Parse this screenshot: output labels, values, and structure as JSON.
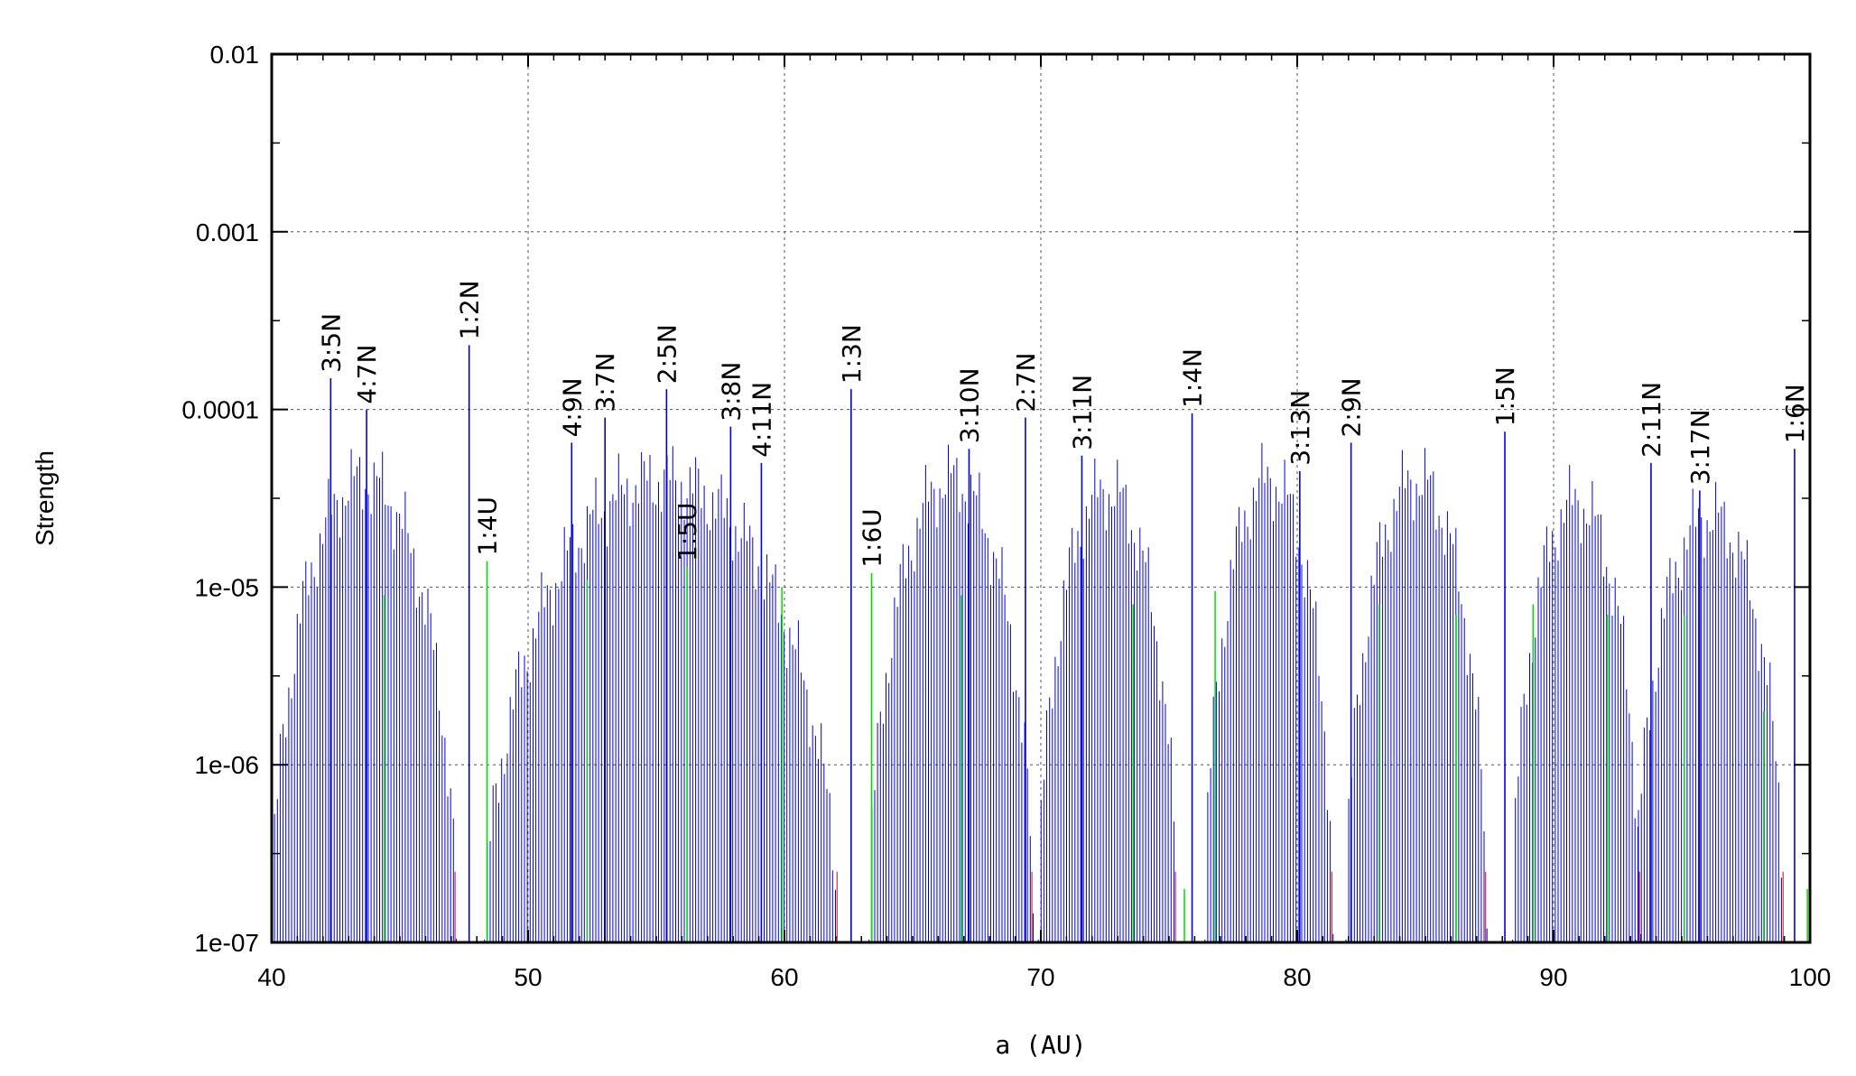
{
  "chart_data": {
    "type": "bar",
    "title": "",
    "xlabel": "a (AU)",
    "ylabel": "Strength",
    "xlim": [
      40,
      100
    ],
    "ylim": [
      1e-07,
      0.01
    ],
    "yscale": "log",
    "grid": true,
    "legend": "none",
    "x_ticks": [
      "40",
      "50",
      "60",
      "70",
      "80",
      "90",
      "100"
    ],
    "y_ticks": [
      "1e-07",
      "1e-06",
      "1e-05",
      "0.0001",
      "0.001",
      "0.01"
    ],
    "colors": {
      "main": "#0000dd",
      "secondary": "#00dd00",
      "minor": "#dd0000"
    },
    "labeled_resonances": [
      {
        "label": "3:5N",
        "a": 42.3,
        "strength": 0.00015
      },
      {
        "label": "4:7N",
        "a": 43.7,
        "strength": 0.0001
      },
      {
        "label": "1:2N",
        "a": 47.7,
        "strength": 0.00023
      },
      {
        "label": "1:4U",
        "a": 48.4,
        "strength": 1.4e-05
      },
      {
        "label": "4:9N",
        "a": 51.7,
        "strength": 6.5e-05
      },
      {
        "label": "3:7N",
        "a": 53.0,
        "strength": 9e-05
      },
      {
        "label": "2:5N",
        "a": 55.4,
        "strength": 0.00013
      },
      {
        "label": "1:5U",
        "a": 56.2,
        "strength": 1.3e-05
      },
      {
        "label": "3:8N",
        "a": 57.9,
        "strength": 8e-05
      },
      {
        "label": "4:11N",
        "a": 59.1,
        "strength": 5e-05
      },
      {
        "label": "1:3N",
        "a": 62.6,
        "strength": 0.00013
      },
      {
        "label": "1:6U",
        "a": 63.4,
        "strength": 1.2e-05
      },
      {
        "label": "3:10N",
        "a": 67.2,
        "strength": 6e-05
      },
      {
        "label": "2:7N",
        "a": 69.4,
        "strength": 9e-05
      },
      {
        "label": "3:11N",
        "a": 71.6,
        "strength": 5.5e-05
      },
      {
        "label": "1:4N",
        "a": 75.9,
        "strength": 9.5e-05
      },
      {
        "label": "3:13N",
        "a": 80.1,
        "strength": 4.5e-05
      },
      {
        "label": "2:9N",
        "a": 82.1,
        "strength": 6.5e-05
      },
      {
        "label": "1:5N",
        "a": 88.1,
        "strength": 7.5e-05
      },
      {
        "label": "2:11N",
        "a": 93.8,
        "strength": 5e-05
      },
      {
        "label": "3:17N",
        "a": 95.7,
        "strength": 3.5e-05
      },
      {
        "label": "1:6N",
        "a": 99.4,
        "strength": 6e-05
      }
    ],
    "clusters": [
      {
        "from": 40.0,
        "to": 47.2,
        "peak": 4e-05
      },
      {
        "from": 48.3,
        "to": 62.1,
        "peak": 4e-05
      },
      {
        "from": 63.3,
        "to": 69.7,
        "peak": 4e-05
      },
      {
        "from": 69.9,
        "to": 75.3,
        "peak": 3.5e-05
      },
      {
        "from": 76.4,
        "to": 81.4,
        "peak": 4e-05
      },
      {
        "from": 81.9,
        "to": 87.4,
        "peak": 4e-05
      },
      {
        "from": 88.4,
        "to": 93.4,
        "peak": 3e-05
      },
      {
        "from": 93.2,
        "to": 99.0,
        "peak": 2.5e-05
      }
    ],
    "secondary_lines": [
      {
        "a": 44.4,
        "strength": 9e-06
      },
      {
        "a": 52.3,
        "strength": 1.1e-05
      },
      {
        "a": 59.9,
        "strength": 1e-05
      },
      {
        "a": 66.9,
        "strength": 9e-06
      },
      {
        "a": 73.6,
        "strength": 8e-06
      },
      {
        "a": 76.8,
        "strength": 9.5e-06
      },
      {
        "a": 83.2,
        "strength": 8e-06
      },
      {
        "a": 86.2,
        "strength": 7e-06
      },
      {
        "a": 89.2,
        "strength": 8e-06
      },
      {
        "a": 92.1,
        "strength": 7e-06
      },
      {
        "a": 95.1,
        "strength": 7e-06
      },
      {
        "a": 98.2,
        "strength": 2e-06
      },
      {
        "a": 75.6,
        "strength": 2e-07
      },
      {
        "a": 99.9,
        "strength": 2e-07
      }
    ]
  }
}
